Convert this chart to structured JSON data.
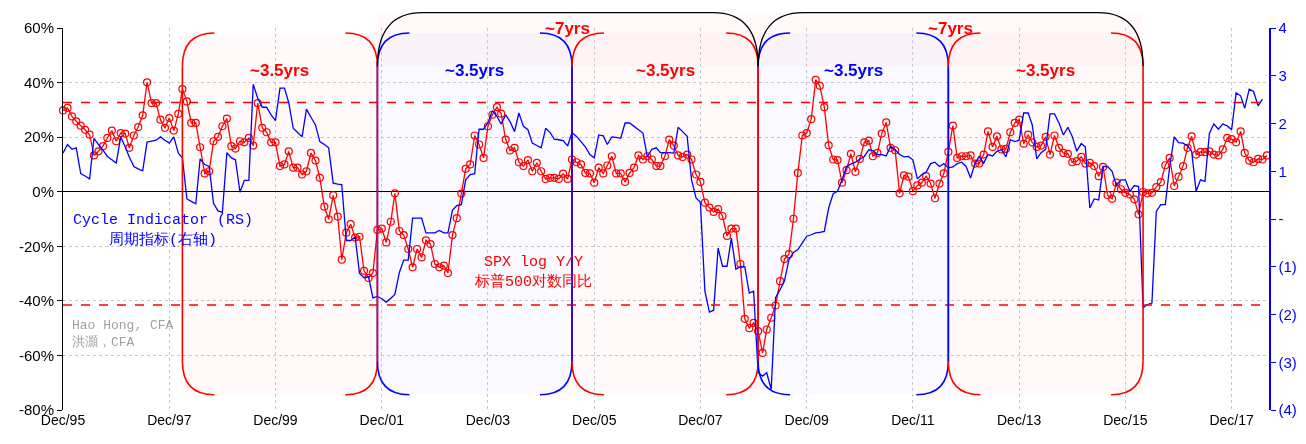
{
  "chart_data": {
    "type": "line",
    "x": [
      "1995-12",
      "1996-01",
      "1996-02",
      "1996-03",
      "1996-04",
      "1996-05",
      "1996-06",
      "1996-07",
      "1996-08",
      "1996-09",
      "1996-10",
      "1996-11",
      "1996-12",
      "1997-01",
      "1997-02",
      "1997-03",
      "1997-04",
      "1997-05",
      "1997-06",
      "1997-07",
      "1997-08",
      "1997-09",
      "1997-10",
      "1997-11",
      "1997-12",
      "1998-01",
      "1998-02",
      "1998-03",
      "1998-04",
      "1998-05",
      "1998-06",
      "1998-07",
      "1998-08",
      "1998-09",
      "1998-10",
      "1998-11",
      "1998-12",
      "1999-01",
      "1999-02",
      "1999-03",
      "1999-04",
      "1999-05",
      "1999-06",
      "1999-07",
      "1999-08",
      "1999-09",
      "1999-10",
      "1999-11",
      "1999-12",
      "2000-01",
      "2000-02",
      "2000-03",
      "2000-04",
      "2000-05",
      "2000-06",
      "2000-07",
      "2000-08",
      "2000-09",
      "2000-10",
      "2000-11",
      "2000-12",
      "2001-01",
      "2001-02",
      "2001-03",
      "2001-04",
      "2001-05",
      "2001-06",
      "2001-07",
      "2001-08",
      "2001-09",
      "2001-10",
      "2001-11",
      "2001-12",
      "2002-01",
      "2002-02",
      "2002-03",
      "2002-04",
      "2002-05",
      "2002-06",
      "2002-07",
      "2002-08",
      "2002-09",
      "2002-10",
      "2002-11",
      "2002-12",
      "2003-01",
      "2003-02",
      "2003-03",
      "2003-04",
      "2003-05",
      "2003-06",
      "2003-07",
      "2003-08",
      "2003-09",
      "2003-10",
      "2003-11",
      "2003-12",
      "2004-01",
      "2004-02",
      "2004-03",
      "2004-04",
      "2004-05",
      "2004-06",
      "2004-07",
      "2004-08",
      "2004-09",
      "2004-10",
      "2004-11",
      "2004-12",
      "2005-01",
      "2005-02",
      "2005-03",
      "2005-04",
      "2005-05",
      "2005-06",
      "2005-07",
      "2005-08",
      "2005-09",
      "2005-10",
      "2005-11",
      "2005-12",
      "2006-01",
      "2006-02",
      "2006-03",
      "2006-04",
      "2006-05",
      "2006-06",
      "2006-07",
      "2006-08",
      "2006-09",
      "2006-10",
      "2006-11",
      "2006-12",
      "2007-01",
      "2007-02",
      "2007-03",
      "2007-04",
      "2007-05",
      "2007-06",
      "2007-07",
      "2007-08",
      "2007-09",
      "2007-10",
      "2007-11",
      "2007-12",
      "2008-01",
      "2008-02",
      "2008-03",
      "2008-04",
      "2008-05",
      "2008-06",
      "2008-07",
      "2008-08",
      "2008-09",
      "2008-10",
      "2008-11",
      "2008-12",
      "2009-01",
      "2009-02",
      "2009-03",
      "2009-04",
      "2009-05",
      "2009-06",
      "2009-07",
      "2009-08",
      "2009-09",
      "2009-10",
      "2009-11",
      "2009-12",
      "2010-01",
      "2010-02",
      "2010-03",
      "2010-04",
      "2010-05",
      "2010-06",
      "2010-07",
      "2010-08",
      "2010-09",
      "2010-10",
      "2010-11",
      "2010-12",
      "2011-01",
      "2011-02",
      "2011-03",
      "2011-04",
      "2011-05",
      "2011-06",
      "2011-07",
      "2011-08",
      "2011-09",
      "2011-10",
      "2011-11",
      "2011-12",
      "2012-01",
      "2012-02",
      "2012-03",
      "2012-04",
      "2012-05",
      "2012-06",
      "2012-07",
      "2012-08",
      "2012-09",
      "2012-10",
      "2012-11",
      "2012-12",
      "2013-01",
      "2013-02",
      "2013-03",
      "2013-04",
      "2013-05",
      "2013-06",
      "2013-07",
      "2013-08",
      "2013-09",
      "2013-10",
      "2013-11",
      "2013-12",
      "2014-01",
      "2014-02",
      "2014-03",
      "2014-04",
      "2014-05",
      "2014-06",
      "2014-07",
      "2014-08",
      "2014-09",
      "2014-10",
      "2014-11",
      "2014-12",
      "2015-01",
      "2015-02",
      "2015-03",
      "2015-04",
      "2015-05",
      "2015-06",
      "2015-07",
      "2015-08",
      "2015-09",
      "2015-10",
      "2015-11",
      "2015-12",
      "2016-01",
      "2016-02",
      "2016-03",
      "2016-04",
      "2016-05",
      "2016-06",
      "2016-07",
      "2016-08",
      "2016-09",
      "2016-10",
      "2016-11",
      "2016-12",
      "2017-01",
      "2017-02",
      "2017-03",
      "2017-04",
      "2017-05",
      "2017-06",
      "2017-07",
      "2017-08",
      "2017-09",
      "2017-10",
      "2017-11",
      "2017-12",
      "2018-01",
      "2018-02",
      "2018-03",
      "2018-04",
      "2018-05",
      "2018-06",
      "2018-07",
      "2018-08"
    ],
    "series": [
      {
        "name": "SPX log Y/Y\n标普500对数同比",
        "color": "#ff0000",
        "marker": "circle",
        "values": [
          29.8,
          30.7,
          27.6,
          25.8,
          24.2,
          22.7,
          20.9,
          13.3,
          14.8,
          16.7,
          19.7,
          22.4,
          18.5,
          21.5,
          21.3,
          16.1,
          20.6,
          23.7,
          28,
          40.1,
          32.5,
          32.5,
          26.4,
          23.4,
          27,
          22.4,
          28.5,
          37.6,
          33.1,
          25.2,
          25.2,
          16.3,
          6.7,
          7.5,
          18.5,
          20.1,
          24,
          26.8,
          16.7,
          15.8,
          18.5,
          18.1,
          19.7,
          16.9,
          32.5,
          23.4,
          21.8,
          18.1,
          18.1,
          9.4,
          10,
          14.8,
          8.8,
          8.8,
          6.3,
          7.5,
          14.2,
          11.4,
          5.1,
          -5.5,
          -10.1,
          -1.3,
          -9.1,
          -24.9,
          -15,
          -11.9,
          -16.8,
          -16.5,
          -29,
          -31.6,
          -29.8,
          -14,
          -13.5,
          -18.6,
          -11,
          -0.6,
          -14.4,
          -15.9,
          -21,
          -27.7,
          -21,
          -24.1,
          -17.8,
          -19.2,
          -26.5,
          -27.7,
          -27.1,
          -29.8,
          -15.9,
          -9.7,
          -0.7,
          8.4,
          10,
          20.6,
          17.3,
          12.4,
          24,
          28.2,
          31,
          28.6,
          19.1,
          15.1,
          16.1,
          10.8,
          9.4,
          11.6,
          7.5,
          10.6,
          7.5,
          4.7,
          5.1,
          5.1,
          4.7,
          6.6,
          4.7,
          11.8,
          10.8,
          10,
          6.9,
          6.7,
          3.3,
          8.8,
          6.7,
          9.6,
          13,
          6.7,
          6.7,
          3.6,
          6.9,
          8.8,
          13.3,
          11.8,
          13,
          11.8,
          9.4,
          9.4,
          13,
          19.1,
          16.9,
          13.3,
          12.7,
          13.6,
          11.8,
          6.3,
          3.6,
          -4,
          -5.8,
          -7.4,
          -6.4,
          -8.9,
          -16.2,
          -13.5,
          -13.5,
          -26.5,
          -46.6,
          -50,
          -48.1,
          -51.1,
          -59.1,
          -50.5,
          -46.2,
          -41.7,
          -32.8,
          -24.7,
          -22.9,
          -9.9,
          6.9,
          20.6,
          21.5,
          26.6,
          41,
          38.8,
          31,
          17,
          11.8,
          11.6,
          3.3,
          7.9,
          13.9,
          7.3,
          12,
          18.1,
          18.7,
          13,
          14.2,
          21.3,
          25.4,
          16.1,
          15.2,
          -0.6,
          6,
          5.5,
          0.2,
          2.3,
          3.3,
          5.7,
          3,
          -2.4,
          3,
          6.7,
          14.6,
          24.2,
          12.4,
          13,
          13,
          13.3,
          10.3,
          10.3,
          13.6,
          22.1,
          16.4,
          20.3,
          15.5,
          15.7,
          21.8,
          25.2,
          26.4,
          17.6,
          20.9,
          18.1,
          16.4,
          16.9,
          20.1,
          13.6,
          20.6,
          16.1,
          14.2,
          13.9,
          10.8,
          11.2,
          12.8,
          10.3,
          10.6,
          9.4,
          5.7,
          9.1,
          -1.2,
          -2.6,
          3.3,
          0.9,
          -0.4,
          -1,
          -2.8,
          -8.3,
          -0.1,
          -0.6,
          -0.4,
          1.7,
          3.5,
          9.7,
          12.4,
          2.1,
          5.5,
          9.4,
          16.1,
          20.3,
          13.6,
          14.6,
          14.5,
          14.8,
          13.6,
          13.3,
          15.5,
          19.7,
          19.3,
          18.1,
          22.1,
          14.2,
          11.4,
          10.8,
          12,
          11.8,
          13.3
        ]
      },
      {
        "name": "Cycle Indicator (RS)\n周期指标(右轴)",
        "color": "#0000ff",
        "marker": "none",
        "axis": "y2",
        "values": [
          1.38,
          1.56,
          1.46,
          1.49,
          0.95,
          0.9,
          0.84,
          1.69,
          1.56,
          1.44,
          1.31,
          1.24,
          1.17,
          1.72,
          1.51,
          1.3,
          1.1,
          1.05,
          1.01,
          1.61,
          1.63,
          1.65,
          1.72,
          1.65,
          1.59,
          1.72,
          1.38,
          1.28,
          0.42,
          0.37,
          0.32,
          1.26,
          1.14,
          1.1,
          0.33,
          0.17,
          0.14,
          1.39,
          1.28,
          1.24,
          0.56,
          0.81,
          0.81,
          2.82,
          2.53,
          2.34,
          2.34,
          2.18,
          2.06,
          2.74,
          2.74,
          2.44,
          1.9,
          1.81,
          1.72,
          2.3,
          2.13,
          1.97,
          1.62,
          1.56,
          1.49,
          0.75,
          0.73,
          0.72,
          -0.45,
          -0.45,
          -0.38,
          -1.14,
          -1.23,
          -1.21,
          -1.65,
          -1.62,
          -1.67,
          -1.74,
          -1.66,
          -1.58,
          -1.12,
          -0.86,
          -0.86,
          0.02,
          0.02,
          0.02,
          -0.29,
          -0.29,
          -0.29,
          -0.24,
          -0.29,
          -0.29,
          0.18,
          0.28,
          0.3,
          0.82,
          0.93,
          0.95,
          1.88,
          1.88,
          2.02,
          2.27,
          2.15,
          1.99,
          2.18,
          2.04,
          1.83,
          2.22,
          1.94,
          1.87,
          1.59,
          1.54,
          1.49,
          1.9,
          1.81,
          1.67,
          1.66,
          1.64,
          1.53,
          1.81,
          1.73,
          1.62,
          1.51,
          1.35,
          1.28,
          1.76,
          1.74,
          1.56,
          1.72,
          1.71,
          1.69,
          2.01,
          2.01,
          1.94,
          1.87,
          1.8,
          1.3,
          1.46,
          1.49,
          1.39,
          1.39,
          1.39,
          1.38,
          1.92,
          1.83,
          1.73,
          0.82,
          0.44,
          0.35,
          -1.51,
          -1.95,
          -1.91,
          -0.61,
          -0.99,
          -0.99,
          -0.4,
          -1.05,
          -1,
          -1,
          -1.55,
          -1.51,
          -3.22,
          -3.29,
          -3.22,
          -3.57,
          -1.65,
          -1.48,
          -1.3,
          -0.85,
          -0.7,
          -0.64,
          -0.5,
          -0.36,
          -0.33,
          -0.29,
          -0.28,
          -0.26,
          0.23,
          0.53,
          0.58,
          0.82,
          1.1,
          1.15,
          1.19,
          1.25,
          1.31,
          1.45,
          1.43,
          1.35,
          1.35,
          1.32,
          1.53,
          1.45,
          1.35,
          1.3,
          1.31,
          1.24,
          0.84,
          0.93,
          0.98,
          1.16,
          1.19,
          1.1,
          1.16,
          1.07,
          1.09,
          1.16,
          1.19,
          1.1,
          0.86,
          1.17,
          1.31,
          1.17,
          1.35,
          1.32,
          1.42,
          1.45,
          1.3,
          1.66,
          1.62,
          1.65,
          2.22,
          2.22,
          1.97,
          1.26,
          1.39,
          1.46,
          2.2,
          2.2,
          2.01,
          1.76,
          1.92,
          1.73,
          1.42,
          1.58,
          1.51,
          0.23,
          0.42,
          0.4,
          1.1,
          1.1,
          1,
          0.7,
          0.82,
          0.82,
          0.58,
          0.7,
          0.68,
          -1.86,
          -1.79,
          -1.76,
          0.16,
          0.3,
          0.3,
          1.1,
          1.72,
          1.6,
          1.59,
          1.53,
          1.42,
          0.58,
          0.82,
          0.79,
          1.79,
          1.99,
          1.88,
          1.99,
          1.95,
          1.87,
          2.64,
          2.58,
          2.32,
          2.72,
          2.67,
          2.37,
          2.51,
          null
        ]
      }
    ],
    "xlim": [
      "1995-12",
      "2018-08-15"
    ],
    "xticks": [
      {
        "value": "1995-12",
        "label": "Dec/95"
      },
      {
        "value": "1997-12",
        "label": "Dec/97"
      },
      {
        "value": "1999-12",
        "label": "Dec/99"
      },
      {
        "value": "2001-12",
        "label": "Dec/01"
      },
      {
        "value": "2003-12",
        "label": "Dec/03"
      },
      {
        "value": "2005-12",
        "label": "Dec/05"
      },
      {
        "value": "2007-12",
        "label": "Dec/07"
      },
      {
        "value": "2009-12",
        "label": "Dec/09"
      },
      {
        "value": "2011-12",
        "label": "Dec/11"
      },
      {
        "value": "2013-12",
        "label": "Dec/13"
      },
      {
        "value": "2015-12",
        "label": "Dec/15"
      },
      {
        "value": "2017-12",
        "label": "Dec/17"
      }
    ],
    "ylim": [
      -80,
      60
    ],
    "yticks": [
      {
        "value": -80,
        "label": "-80%"
      },
      {
        "value": -60,
        "label": "-60%"
      },
      {
        "value": -40,
        "label": "-40%"
      },
      {
        "value": -20,
        "label": "-20%"
      },
      {
        "value": 0,
        "label": "0%"
      },
      {
        "value": 20,
        "label": "20%"
      },
      {
        "value": 40,
        "label": "40%"
      },
      {
        "value": 60,
        "label": "60%"
      }
    ],
    "y2lim": [
      -4,
      4
    ],
    "y2ticks": [
      {
        "value": -4,
        "label": "(4)"
      },
      {
        "value": -3,
        "label": "(3)"
      },
      {
        "value": -2,
        "label": "(2)"
      },
      {
        "value": -1,
        "label": "(1)"
      },
      {
        "value": 0,
        "label": "-"
      },
      1,
      2,
      3,
      4
    ],
    "ref_lines": [
      {
        "axis": "y",
        "value": 32.7,
        "color": "#ff0000",
        "line_style": "dashed"
      },
      {
        "axis": "y",
        "value": -41.5,
        "color": "#ff0000",
        "line_style": "dashed"
      },
      {
        "axis": "x",
        "value": "1998-03",
        "color": "#ff0000",
        "line_style": "solid"
      },
      {
        "axis": "x",
        "value": "2001-11",
        "color": "#0000ff",
        "line_style": "solid"
      },
      {
        "axis": "x",
        "value": "2001-11",
        "color": "#ff0000",
        "line_style": "solid"
      },
      {
        "axis": "x",
        "value": "2005-07",
        "color": "#ff0000",
        "line_style": "solid"
      },
      {
        "axis": "x",
        "value": "2005-07",
        "color": "#0000ff",
        "line_style": "solid"
      },
      {
        "axis": "x",
        "value": "2009-01",
        "color": "#0000ff",
        "line_style": "solid"
      },
      {
        "axis": "x",
        "value": "2009-01",
        "color": "#ff0000",
        "line_style": "solid"
      },
      {
        "axis": "x",
        "value": "2012-08",
        "color": "#ff0000",
        "line_style": "solid"
      },
      {
        "axis": "x",
        "value": "2012-08",
        "color": "#0000ff",
        "line_style": "solid"
      },
      {
        "axis": "x",
        "value": "2016-04",
        "color": "#ff0000",
        "line_style": "solid"
      }
    ],
    "bands": [
      {
        "axis": "x",
        "from": "1998-03",
        "to": "2001-11",
        "label": "~3.5yrs",
        "color": "#ff0000"
      },
      {
        "axis": "x",
        "from": "2001-11",
        "to": "2005-07",
        "label": "~3.5yrs",
        "color": "#0000ff"
      },
      {
        "axis": "x",
        "from": "2005-07",
        "to": "2009-01",
        "label": "~3.5yrs",
        "color": "#ff0000"
      },
      {
        "axis": "x",
        "from": "2009-01",
        "to": "2012-08",
        "label": "~3.5yrs",
        "color": "#0000ff"
      },
      {
        "axis": "x",
        "from": "2012-08",
        "to": "2016-04",
        "label": "~3.5yrs",
        "color": "#ff0000"
      },
      {
        "axis": "x",
        "from": "2001-11",
        "to": "2009-01",
        "label": "~7yrs",
        "color": "#ff0000"
      },
      {
        "axis": "x",
        "from": "2009-01",
        "to": "2016-04",
        "label": "~7yrs",
        "color": "#ff0000"
      }
    ],
    "annotations": [
      "Hao Hong, CFA\n洪灝，CFA"
    ],
    "grid": true,
    "legend": false
  }
}
